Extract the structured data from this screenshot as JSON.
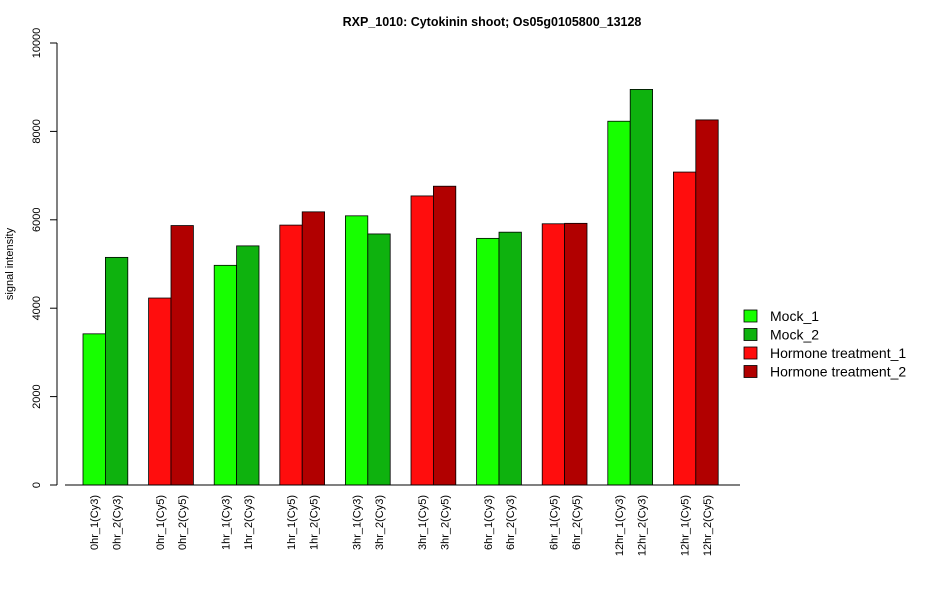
{
  "chart_data": {
    "type": "bar",
    "title": "RXP_1010: Cytokinin shoot; Os05g0105800_13128",
    "xlabel": "",
    "ylabel": "signal intensity",
    "ylim": [
      0,
      10000
    ],
    "yticks": [
      0,
      2000,
      4000,
      6000,
      8000,
      10000
    ],
    "grid": false,
    "legend_position": "right",
    "colors": {
      "Mock_1": "#17ff00",
      "Mock_2": "#0eb20e",
      "Hormone treatment_1": "#ff0d0d",
      "Hormone treatment_2": "#b10000"
    },
    "legend": [
      "Mock_1",
      "Mock_2",
      "Hormone treatment_1",
      "Hormone treatment_2"
    ],
    "bars": [
      {
        "label": "0hr_1(Cy3)",
        "value": 3420,
        "series": "Mock_1"
      },
      {
        "label": "0hr_2(Cy3)",
        "value": 5150,
        "series": "Mock_2"
      },
      {
        "label": "0hr_1(Cy5)",
        "value": 4230,
        "series": "Hormone treatment_1"
      },
      {
        "label": "0hr_2(Cy5)",
        "value": 5870,
        "series": "Hormone treatment_2"
      },
      {
        "label": "1hr_1(Cy3)",
        "value": 4970,
        "series": "Mock_1"
      },
      {
        "label": "1hr_2(Cy3)",
        "value": 5410,
        "series": "Mock_2"
      },
      {
        "label": "1hr_1(Cy5)",
        "value": 5880,
        "series": "Hormone treatment_1"
      },
      {
        "label": "1hr_2(Cy5)",
        "value": 6180,
        "series": "Hormone treatment_2"
      },
      {
        "label": "3hr_1(Cy3)",
        "value": 6090,
        "series": "Mock_1"
      },
      {
        "label": "3hr_2(Cy3)",
        "value": 5680,
        "series": "Mock_2"
      },
      {
        "label": "3hr_1(Cy5)",
        "value": 6540,
        "series": "Hormone treatment_1"
      },
      {
        "label": "3hr_2(Cy5)",
        "value": 6760,
        "series": "Hormone treatment_2"
      },
      {
        "label": "6hr_1(Cy3)",
        "value": 5580,
        "series": "Mock_1"
      },
      {
        "label": "6hr_2(Cy3)",
        "value": 5720,
        "series": "Mock_2"
      },
      {
        "label": "6hr_1(Cy5)",
        "value": 5910,
        "series": "Hormone treatment_1"
      },
      {
        "label": "6hr_2(Cy5)",
        "value": 5920,
        "series": "Hormone treatment_2"
      },
      {
        "label": "12hr_1(Cy3)",
        "value": 8230,
        "series": "Mock_1"
      },
      {
        "label": "12hr_2(Cy3)",
        "value": 8950,
        "series": "Mock_2"
      },
      {
        "label": "12hr_1(Cy5)",
        "value": 7080,
        "series": "Hormone treatment_1"
      },
      {
        "label": "12hr_2(Cy5)",
        "value": 8260,
        "series": "Hormone treatment_2"
      }
    ]
  }
}
